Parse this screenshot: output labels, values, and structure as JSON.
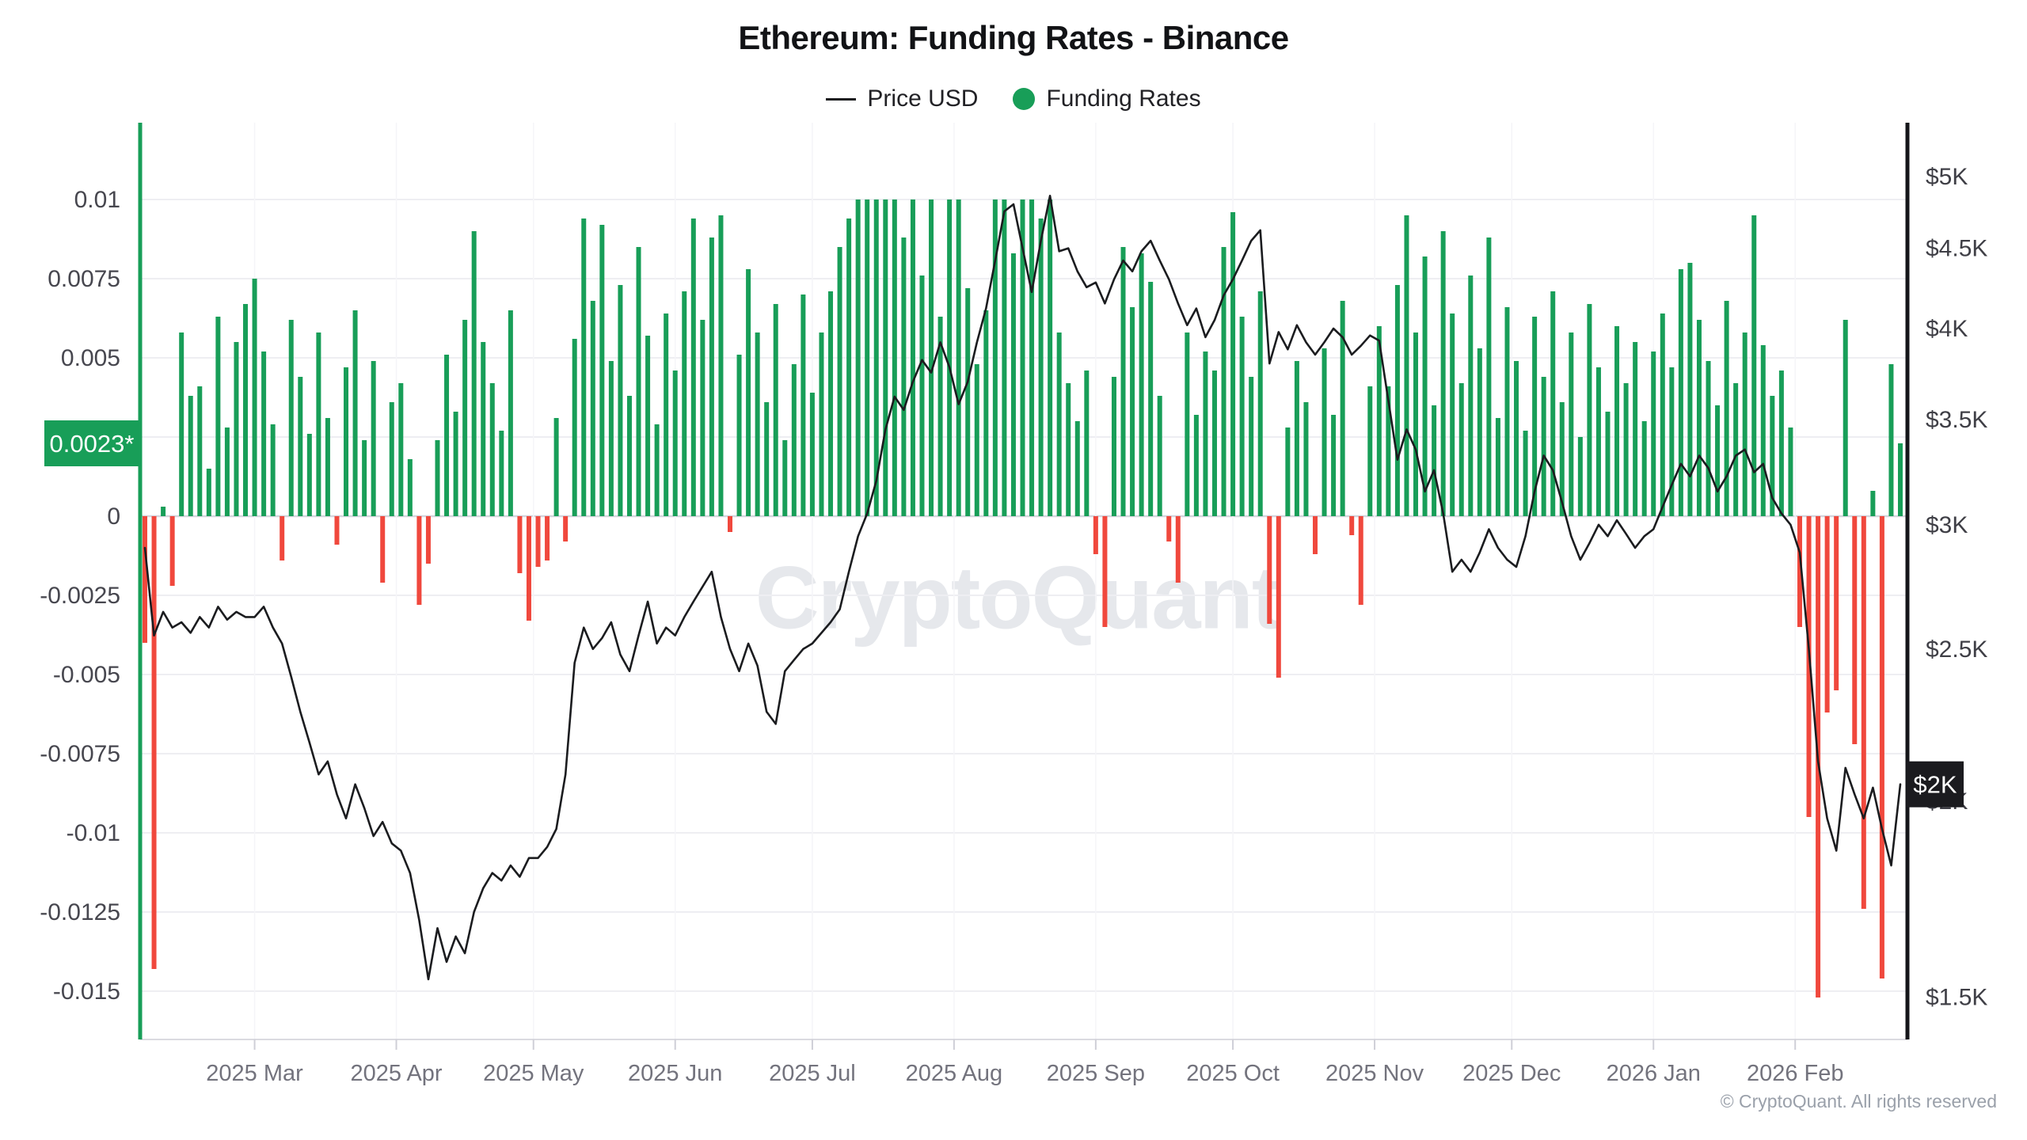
{
  "title": "Ethereum: Funding Rates - Binance",
  "legend": [
    {
      "label": "Price USD",
      "marker": "line",
      "color": "#1b1c1f"
    },
    {
      "label": "Funding Rates",
      "marker": "circle",
      "color": "#189e58"
    }
  ],
  "watermark": "CryptoQuant",
  "footer": "© CryptoQuant. All rights reserved",
  "badges": {
    "funding_latest": {
      "text": "0.0023*",
      "value": 0.0023,
      "bg": "#189e58",
      "fg": "#ffffff"
    },
    "price_latest": {
      "text": "$2K",
      "value_usd_k": 2.05,
      "bg": "#1b1b1f",
      "fg": "#ffffff"
    }
  },
  "colors": {
    "positive_bar": "#189e58",
    "negative_bar": "#f0483d",
    "price_line": "#1b1c1f",
    "grid": "#eeeef2",
    "grid_zero": "#d5d5dd",
    "axis_left_line": "#189e58",
    "axis_right_line": "#15161a",
    "axis_bottom_line": "#dadae0",
    "tick_label_left": "#47474f",
    "tick_label_right": "#3f3f46",
    "month_label": "#73737d",
    "month_tick": "#cfcfd7",
    "vgrid": "#f5f5f8"
  },
  "chart_data": {
    "type": "bar+line",
    "title": "Ethereum: Funding Rates - Binance",
    "x_start": "2025-02-05",
    "x_interval_days": 2,
    "x_tick_labels": [
      "2025 Mar",
      "2025 Apr",
      "2025 May",
      "2025 Jun",
      "2025 Jul",
      "2025 Aug",
      "2025 Sep",
      "2025 Oct",
      "2025 Nov",
      "2025 Dec",
      "2026 Jan",
      "2026 Feb"
    ],
    "x_tick_indices": [
      12,
      27.5,
      42.5,
      58,
      73,
      88.5,
      104,
      119,
      134.5,
      149.5,
      165,
      180.5
    ],
    "left_axis": {
      "name": "Funding Rates",
      "scale": "linear",
      "ylim": [
        -0.016525,
        0.012425
      ],
      "grid_values": [
        0.01,
        0.0075,
        0.005,
        0.0025,
        0,
        -0.0025,
        -0.005,
        -0.0075,
        -0.01,
        -0.0125,
        -0.015
      ],
      "tick_values": [
        0.01,
        0.0075,
        0.005,
        0,
        -0.0025,
        -0.005,
        -0.0075,
        -0.01,
        -0.0125,
        -0.015
      ],
      "tick_labels": [
        "0.01",
        "0.0075",
        "0.005",
        "0",
        "-0.0025",
        "-0.005",
        "-0.0075",
        "-0.01",
        "-0.0125",
        "-0.015"
      ]
    },
    "right_axis": {
      "name": "Price USD",
      "scale": "log",
      "ylim_usd_k": [
        1.41,
        5.41
      ],
      "tick_values_usd_k": [
        5,
        4.5,
        4,
        3.5,
        3,
        2.5,
        2,
        1.5
      ],
      "tick_labels": [
        "$5K",
        "$4.5K",
        "$4K",
        "$3.5K",
        "$3K",
        "$2.5K",
        "$2K",
        "$1.5K"
      ]
    },
    "legend_position": "top-center",
    "grid": "horizontal-on, faint-vertical-at-months",
    "series": [
      {
        "name": "Funding Rates",
        "type": "bar",
        "color_positive": "#189e58",
        "color_negative": "#f0483d",
        "values": [
          -0.004,
          -0.0143,
          0.0003,
          -0.0022,
          0.0058,
          0.0038,
          0.0041,
          0.0015,
          0.0063,
          0.0028,
          0.0055,
          0.0067,
          0.0075,
          0.0052,
          0.0029,
          -0.0014,
          0.0062,
          0.0044,
          0.0026,
          0.0058,
          0.0031,
          -0.0009,
          0.0047,
          0.0065,
          0.0024,
          0.0049,
          -0.0021,
          0.0036,
          0.0042,
          0.0018,
          -0.0028,
          -0.0015,
          0.0024,
          0.0051,
          0.0033,
          0.0062,
          0.009,
          0.0055,
          0.0042,
          0.0027,
          0.0065,
          -0.0018,
          -0.0033,
          -0.0016,
          -0.0014,
          0.0031,
          -0.0008,
          0.0056,
          0.0094,
          0.0068,
          0.0092,
          0.0049,
          0.0073,
          0.0038,
          0.0085,
          0.0057,
          0.0029,
          0.0064,
          0.0046,
          0.0071,
          0.0094,
          0.0062,
          0.0088,
          0.0095,
          -0.0005,
          0.0051,
          0.0078,
          0.0058,
          0.0036,
          0.0067,
          0.0024,
          0.0048,
          0.007,
          0.0039,
          0.0058,
          0.0071,
          0.0085,
          0.0094,
          0.01,
          0.01,
          0.01,
          0.01,
          0.01,
          0.0088,
          0.01,
          0.0076,
          0.01,
          0.0063,
          0.01,
          0.01,
          0.0072,
          0.0048,
          0.0065,
          0.01,
          0.01,
          0.0083,
          0.01,
          0.01,
          0.0094,
          0.01,
          0.0058,
          0.0042,
          0.003,
          0.0046,
          -0.0012,
          -0.0035,
          0.0044,
          0.0085,
          0.0066,
          0.0083,
          0.0074,
          0.0038,
          -0.0008,
          -0.0021,
          0.0058,
          0.0032,
          0.0052,
          0.0046,
          0.0085,
          0.0096,
          0.0063,
          0.0044,
          0.0071,
          -0.0034,
          -0.0051,
          0.0028,
          0.0049,
          0.0036,
          -0.0012,
          0.0053,
          0.0032,
          0.0068,
          -0.0006,
          -0.0028,
          0.0041,
          0.006,
          0.0041,
          0.0073,
          0.0095,
          0.0058,
          0.0082,
          0.0035,
          0.009,
          0.0064,
          0.0042,
          0.0076,
          0.0053,
          0.0088,
          0.0031,
          0.0066,
          0.0049,
          0.0027,
          0.0063,
          0.0044,
          0.0071,
          0.0036,
          0.0058,
          0.0025,
          0.0067,
          0.0047,
          0.0033,
          0.006,
          0.0042,
          0.0055,
          0.003,
          0.0052,
          0.0064,
          0.0047,
          0.0078,
          0.008,
          0.0062,
          0.0049,
          0.0035,
          0.0068,
          0.0042,
          0.0058,
          0.0095,
          0.0054,
          0.0038,
          0.0046,
          0.0028,
          -0.0035,
          -0.0095,
          -0.0152,
          -0.0062,
          -0.0055,
          0.0062,
          -0.0072,
          -0.0124,
          0.0008,
          -0.0146,
          0.0048,
          0.0023
        ]
      },
      {
        "name": "Price USD",
        "type": "line",
        "color": "#1b1c1f",
        "values_usd_k": [
          2.9,
          2.55,
          2.64,
          2.58,
          2.6,
          2.56,
          2.62,
          2.58,
          2.66,
          2.61,
          2.64,
          2.62,
          2.62,
          2.66,
          2.58,
          2.52,
          2.4,
          2.28,
          2.18,
          2.08,
          2.12,
          2.02,
          1.95,
          2.05,
          1.98,
          1.9,
          1.94,
          1.88,
          1.86,
          1.8,
          1.68,
          1.54,
          1.66,
          1.58,
          1.64,
          1.6,
          1.7,
          1.76,
          1.8,
          1.78,
          1.82,
          1.79,
          1.84,
          1.84,
          1.87,
          1.92,
          2.08,
          2.45,
          2.58,
          2.5,
          2.54,
          2.6,
          2.48,
          2.42,
          2.55,
          2.68,
          2.52,
          2.58,
          2.55,
          2.62,
          2.68,
          2.74,
          2.8,
          2.62,
          2.5,
          2.42,
          2.52,
          2.44,
          2.28,
          2.24,
          2.42,
          2.46,
          2.5,
          2.52,
          2.56,
          2.6,
          2.65,
          2.8,
          2.95,
          3.05,
          3.2,
          3.45,
          3.62,
          3.55,
          3.7,
          3.82,
          3.75,
          3.92,
          3.78,
          3.58,
          3.7,
          3.92,
          4.12,
          4.42,
          4.75,
          4.8,
          4.5,
          4.22,
          4.55,
          4.86,
          4.48,
          4.5,
          4.35,
          4.25,
          4.28,
          4.15,
          4.3,
          4.42,
          4.35,
          4.48,
          4.55,
          4.42,
          4.3,
          4.15,
          4.02,
          4.12,
          3.95,
          4.05,
          4.2,
          4.3,
          4.42,
          4.55,
          4.62,
          3.8,
          3.98,
          3.88,
          4.02,
          3.92,
          3.85,
          3.92,
          4.0,
          3.95,
          3.85,
          3.9,
          3.96,
          3.93,
          3.6,
          3.3,
          3.45,
          3.35,
          3.15,
          3.25,
          3.05,
          2.8,
          2.85,
          2.8,
          2.88,
          2.98,
          2.9,
          2.85,
          2.82,
          2.95,
          3.15,
          3.32,
          3.25,
          3.1,
          2.95,
          2.85,
          2.92,
          3.0,
          2.95,
          3.02,
          2.96,
          2.9,
          2.95,
          2.98,
          3.08,
          3.18,
          3.28,
          3.22,
          3.32,
          3.26,
          3.15,
          3.22,
          3.32,
          3.35,
          3.24,
          3.28,
          3.12,
          3.05,
          3.0,
          2.88,
          2.5,
          2.12,
          1.95,
          1.86,
          2.1,
          2.02,
          1.95,
          2.04,
          1.92,
          1.82,
          2.05
        ]
      }
    ],
    "latest": {
      "funding": 0.0023,
      "price_usd_k": 2.05
    }
  }
}
